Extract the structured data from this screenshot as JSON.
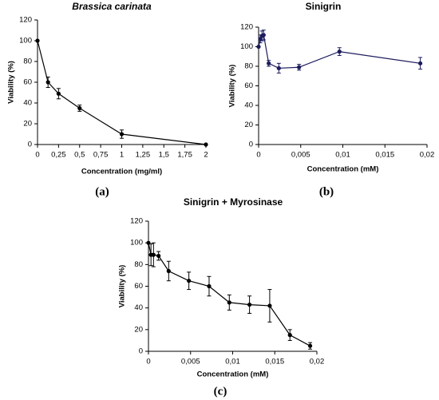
{
  "chart_data": [
    {
      "type": "line",
      "title": "Brassica carinata",
      "panel_label": "(a)",
      "xlabel": "Concentration (mg/ml)",
      "ylabel": "Viability (%)",
      "xlim": [
        0,
        2
      ],
      "ylim": [
        0,
        120
      ],
      "xticks": [
        0,
        {
          "value": 0.25,
          "label": "0,25"
        },
        {
          "value": 0.5,
          "label": "0,5"
        },
        {
          "value": 0.75,
          "label": "0,75"
        },
        1,
        {
          "value": 1.25,
          "label": "1,25"
        },
        {
          "value": 1.5,
          "label": "1,5"
        },
        {
          "value": 1.75,
          "label": "1,75"
        },
        2
      ],
      "yticks": [
        0,
        20,
        40,
        60,
        80,
        100,
        120
      ],
      "series": [
        {
          "color": "#000000",
          "x": [
            0,
            0.125,
            0.25,
            0.5,
            1,
            2
          ],
          "values": [
            100,
            60,
            49,
            35,
            10,
            0
          ],
          "errors": [
            0,
            5,
            5,
            3,
            4,
            0
          ]
        }
      ]
    },
    {
      "type": "line",
      "title": "Sinigrin",
      "panel_label": "(b)",
      "xlabel": "Concentration (mM)",
      "ylabel": "Viability (%)",
      "xlim": [
        0,
        0.02
      ],
      "ylim": [
        0,
        120
      ],
      "xticks": [
        0,
        {
          "value": 0.005,
          "label": "0,005"
        },
        {
          "value": 0.01,
          "label": "0,01"
        },
        {
          "value": 0.015,
          "label": "0,015"
        },
        {
          "value": 0.02,
          "label": "0,02"
        }
      ],
      "yticks": [
        0,
        20,
        40,
        60,
        80,
        100,
        120
      ],
      "series": [
        {
          "color": "#1c1c5e",
          "x": [
            0,
            0.0002,
            0.0004,
            0.0006,
            0.0012,
            0.0024,
            0.0048,
            0.0096,
            0.0192
          ],
          "values": [
            100,
            108,
            111,
            112,
            83,
            78,
            79,
            95,
            83
          ],
          "errors": [
            0,
            4,
            5,
            5,
            3,
            5,
            3,
            4,
            6
          ]
        }
      ]
    },
    {
      "type": "line",
      "title": "Sinigrin + Myrosinase",
      "panel_label": "(c)",
      "xlabel": "Concentration (mM)",
      "ylabel": "Viability (%)",
      "xlim": [
        0,
        0.02
      ],
      "ylim": [
        0,
        120
      ],
      "xticks": [
        0,
        {
          "value": 0.005,
          "label": "0,005"
        },
        {
          "value": 0.01,
          "label": "0,01"
        },
        {
          "value": 0.015,
          "label": "0,015"
        },
        {
          "value": 0.02,
          "label": "0,02"
        }
      ],
      "yticks": [
        0,
        20,
        40,
        60,
        80,
        100,
        120
      ],
      "series": [
        {
          "color": "#000000",
          "x": [
            0,
            0.0003,
            0.0006,
            0.0012,
            0.0024,
            0.0048,
            0.0072,
            0.0096,
            0.012,
            0.0144,
            0.0168,
            0.0192
          ],
          "values": [
            100,
            89,
            89,
            88,
            74,
            65,
            60,
            45,
            43,
            42,
            15,
            5
          ],
          "errors": [
            0,
            10,
            11,
            4,
            9,
            8,
            9,
            7,
            8,
            15,
            5,
            3
          ]
        }
      ]
    }
  ]
}
